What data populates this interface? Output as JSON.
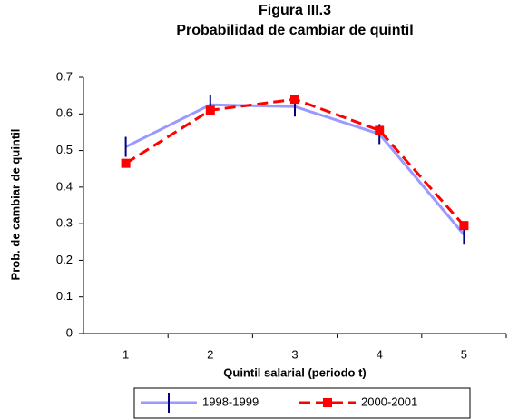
{
  "chart_data": {
    "type": "line",
    "title": "Figura III.3",
    "subtitle": "Probabilidad de cambiar de quintil",
    "x_label": "Quintil salarial (periodo t)",
    "y_label": "Prob. de cambiar de quintil",
    "categories": [
      1,
      2,
      3,
      4,
      5
    ],
    "series": [
      {
        "name": "1998-1999",
        "color": "#9999ff",
        "marker_color": "#000080",
        "marker": "tick",
        "dashed": false,
        "values": [
          0.51,
          0.625,
          0.62,
          0.545,
          0.27
        ]
      },
      {
        "name": "2000-2001",
        "color": "#ff0000",
        "marker_color": "#ff0000",
        "marker": "square",
        "dashed": true,
        "values": [
          0.465,
          0.61,
          0.64,
          0.555,
          0.295
        ]
      }
    ],
    "ylim": [
      0,
      0.7
    ],
    "yticks": [
      0,
      0.1,
      0.2,
      0.3,
      0.4,
      0.5,
      0.6,
      0.7
    ],
    "grid": false,
    "legend": "bottom"
  }
}
